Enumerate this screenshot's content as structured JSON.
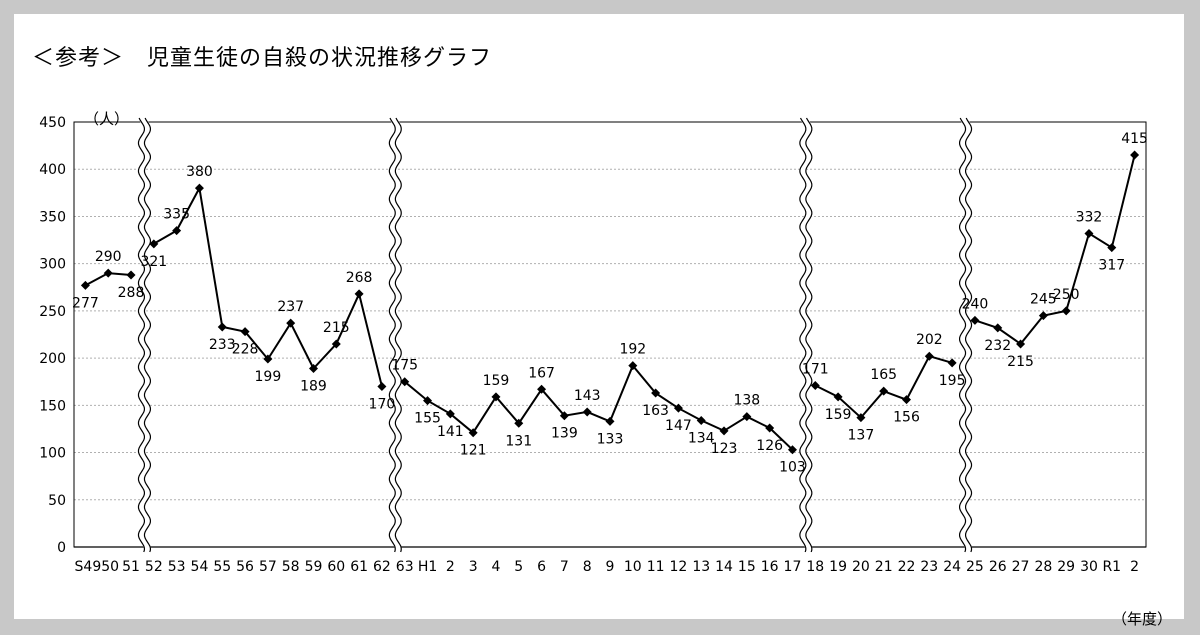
{
  "chart_data": {
    "type": "line",
    "title": "＜参考＞　児童生徒の自殺の状況推移グラフ",
    "ylabel": "（人）",
    "xlabel": "（年度）",
    "ylim": [
      0,
      450
    ],
    "yticks": [
      0,
      50,
      100,
      150,
      200,
      250,
      300,
      350,
      400,
      450
    ],
    "grid": true,
    "categories": [
      "S49",
      "50",
      "51",
      "52",
      "53",
      "54",
      "55",
      "56",
      "57",
      "58",
      "59",
      "60",
      "61",
      "62",
      "63",
      "H1",
      "2",
      "3",
      "4",
      "5",
      "6",
      "7",
      "8",
      "9",
      "10",
      "11",
      "12",
      "13",
      "14",
      "15",
      "16",
      "17",
      "18",
      "19",
      "20",
      "21",
      "22",
      "23",
      "24",
      "25",
      "26",
      "27",
      "28",
      "29",
      "30",
      "R1",
      "2"
    ],
    "tick_labels": [
      "S4950",
      "51",
      "52",
      "53",
      "54",
      "55",
      "56",
      "57",
      "58",
      "59",
      "60",
      "61",
      "62",
      "63",
      "H1",
      "2",
      "3",
      "4",
      "5",
      "6",
      "7",
      "8",
      "9",
      "10",
      "11",
      "12",
      "13",
      "14",
      "15",
      "16",
      "17",
      "18",
      "19",
      "20",
      "21",
      "22",
      "23",
      "24",
      "25",
      "26",
      "27",
      "28",
      "29",
      "30",
      "R1",
      "2"
    ],
    "segments": [
      {
        "categories": [
          "S49",
          "50",
          "51"
        ],
        "values": [
          277,
          290,
          288
        ]
      },
      {
        "categories": [
          "52",
          "53",
          "54",
          "55",
          "56",
          "57",
          "58",
          "59",
          "60",
          "61",
          "62"
        ],
        "values": [
          321,
          335,
          380,
          233,
          228,
          199,
          237,
          189,
          215,
          268,
          170
        ]
      },
      {
        "categories": [
          "63",
          "H1",
          "2",
          "3",
          "4",
          "5",
          "6",
          "7",
          "8",
          "9",
          "10",
          "11",
          "12",
          "13",
          "14",
          "15",
          "16",
          "17"
        ],
        "values": [
          175,
          155,
          141,
          121,
          159,
          131,
          167,
          139,
          143,
          133,
          192,
          163,
          147,
          134,
          123,
          138,
          126,
          103
        ]
      },
      {
        "categories": [
          "18",
          "19",
          "20",
          "21",
          "22",
          "23",
          "24"
        ],
        "values": [
          171,
          159,
          137,
          165,
          156,
          202,
          195
        ]
      },
      {
        "categories": [
          "25",
          "26",
          "27",
          "28",
          "29",
          "30",
          "R1",
          "2"
        ],
        "values": [
          240,
          232,
          215,
          245,
          250,
          332,
          317,
          415
        ]
      }
    ],
    "unlabeled_values": [
      195
    ]
  }
}
